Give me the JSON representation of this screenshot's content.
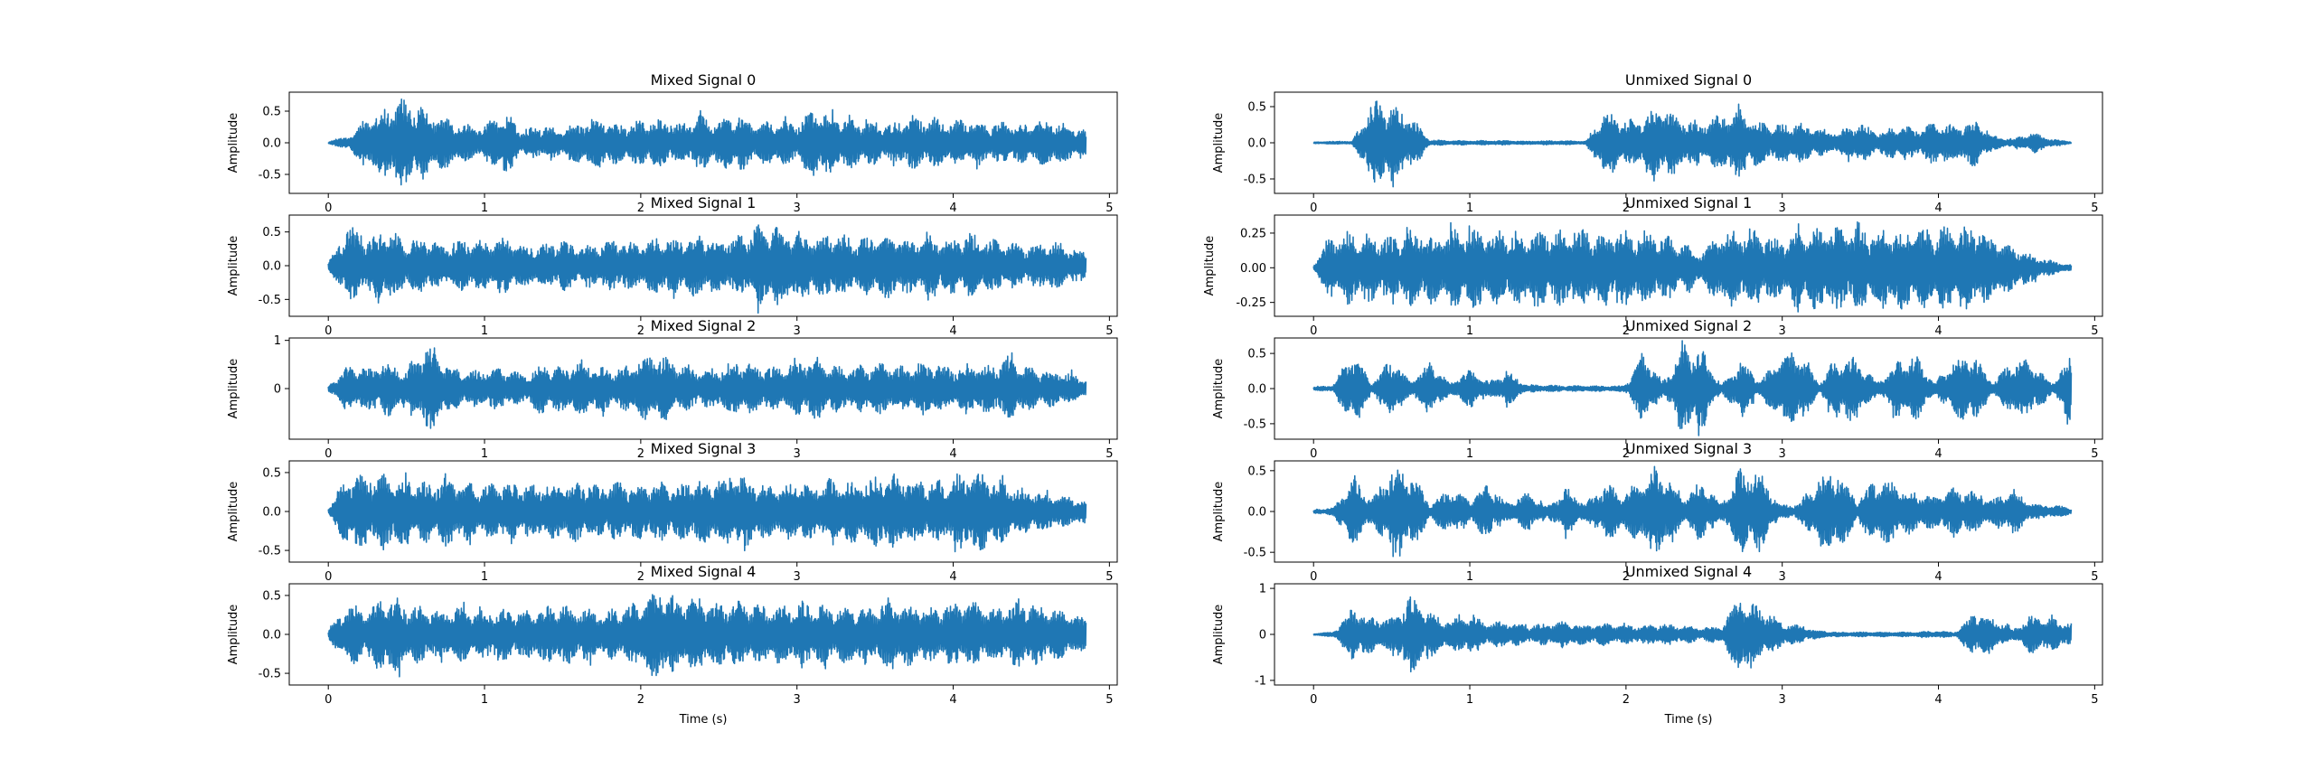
{
  "chart_data": [
    {
      "type": "line",
      "title": "Mixed Signal 0",
      "xlabel": "",
      "ylabel": "Amplitude",
      "xlim": [
        -0.25,
        5.05
      ],
      "ylim": [
        -0.8,
        0.8
      ],
      "xticks": [
        0,
        1,
        2,
        3,
        4,
        5
      ],
      "yticks": [
        -0.5,
        0.0,
        0.5
      ],
      "ytick_labels": [
        "-0.5",
        "0.0",
        "0.5"
      ],
      "duration": 4.85,
      "base": 0.08,
      "peak": 0.78,
      "envelope": [
        0.02,
        0.1,
        0.45,
        0.6,
        0.78,
        0.55,
        0.4,
        0.3,
        0.25,
        0.55,
        0.2,
        0.3,
        0.25,
        0.35,
        0.45,
        0.3,
        0.35,
        0.4,
        0.3,
        0.45,
        0.35,
        0.5,
        0.3,
        0.4,
        0.3,
        0.55,
        0.45,
        0.4,
        0.35,
        0.3,
        0.45,
        0.4,
        0.35,
        0.4,
        0.3,
        0.35,
        0.3,
        0.4,
        0.3,
        0.2
      ],
      "color": "#1f77b4"
    },
    {
      "type": "line",
      "title": "Mixed Signal 1",
      "xlabel": "",
      "ylabel": "Amplitude",
      "xlim": [
        -0.25,
        5.05
      ],
      "ylim": [
        -0.75,
        0.75
      ],
      "xticks": [
        0,
        1,
        2,
        3,
        4,
        5
      ],
      "yticks": [
        -0.5,
        0.0,
        0.5
      ],
      "ytick_labels": [
        "-0.5",
        "0.0",
        "0.5"
      ],
      "duration": 4.85,
      "base": 0.1,
      "peak": 0.7,
      "envelope": [
        0.05,
        0.65,
        0.4,
        0.6,
        0.35,
        0.45,
        0.3,
        0.4,
        0.35,
        0.45,
        0.3,
        0.35,
        0.4,
        0.3,
        0.35,
        0.4,
        0.35,
        0.45,
        0.4,
        0.5,
        0.4,
        0.45,
        0.6,
        0.65,
        0.55,
        0.45,
        0.5,
        0.4,
        0.45,
        0.5,
        0.4,
        0.45,
        0.4,
        0.5,
        0.4,
        0.35,
        0.3,
        0.4,
        0.3,
        0.2
      ],
      "color": "#1f77b4"
    },
    {
      "type": "line",
      "title": "Mixed Signal 2",
      "xlabel": "",
      "ylabel": "Amplitude",
      "xlim": [
        -0.25,
        5.05
      ],
      "ylim": [
        -1.05,
        1.05
      ],
      "xticks": [
        0,
        1,
        2,
        3,
        4,
        5
      ],
      "yticks": [
        0,
        1
      ],
      "ytick_labels": [
        "0",
        "1"
      ],
      "duration": 4.85,
      "base": 0.1,
      "peak": 1.0,
      "envelope": [
        0.05,
        0.5,
        0.45,
        0.6,
        0.4,
        1.0,
        0.55,
        0.35,
        0.4,
        0.45,
        0.3,
        0.55,
        0.45,
        0.6,
        0.5,
        0.4,
        0.65,
        0.75,
        0.55,
        0.4,
        0.45,
        0.6,
        0.5,
        0.45,
        0.55,
        0.7,
        0.5,
        0.45,
        0.55,
        0.5,
        0.45,
        0.6,
        0.45,
        0.55,
        0.5,
        0.7,
        0.45,
        0.4,
        0.35,
        0.2
      ],
      "color": "#1f77b4"
    },
    {
      "type": "line",
      "title": "Mixed Signal 3",
      "xlabel": "",
      "ylabel": "Amplitude",
      "xlim": [
        -0.25,
        5.05
      ],
      "ylim": [
        -0.65,
        0.65
      ],
      "xticks": [
        0,
        1,
        2,
        3,
        4,
        5
      ],
      "yticks": [
        -0.5,
        0.0,
        0.5
      ],
      "ytick_labels": [
        "-0.5",
        "0.0",
        "0.5"
      ],
      "duration": 4.85,
      "base": 0.08,
      "peak": 0.6,
      "envelope": [
        0.05,
        0.5,
        0.45,
        0.5,
        0.45,
        0.4,
        0.45,
        0.4,
        0.35,
        0.4,
        0.35,
        0.4,
        0.35,
        0.4,
        0.35,
        0.4,
        0.35,
        0.4,
        0.35,
        0.4,
        0.45,
        0.55,
        0.4,
        0.35,
        0.4,
        0.35,
        0.45,
        0.4,
        0.45,
        0.5,
        0.45,
        0.4,
        0.45,
        0.55,
        0.5,
        0.35,
        0.3,
        0.25,
        0.2,
        0.15
      ],
      "color": "#1f77b4"
    },
    {
      "type": "line",
      "title": "Mixed Signal 4",
      "xlabel": "Time (s)",
      "ylabel": "Amplitude",
      "xlim": [
        -0.25,
        5.05
      ],
      "ylim": [
        -0.65,
        0.65
      ],
      "xticks": [
        0,
        1,
        2,
        3,
        4,
        5
      ],
      "yticks": [
        -0.5,
        0.0,
        0.5
      ],
      "ytick_labels": [
        "-0.5",
        "0.0",
        "0.5"
      ],
      "duration": 4.85,
      "base": 0.08,
      "peak": 0.6,
      "envelope": [
        0.05,
        0.4,
        0.35,
        0.55,
        0.4,
        0.35,
        0.3,
        0.35,
        0.3,
        0.35,
        0.3,
        0.35,
        0.4,
        0.35,
        0.3,
        0.35,
        0.45,
        0.6,
        0.45,
        0.5,
        0.4,
        0.45,
        0.4,
        0.35,
        0.45,
        0.4,
        0.35,
        0.4,
        0.35,
        0.45,
        0.4,
        0.35,
        0.4,
        0.45,
        0.35,
        0.4,
        0.45,
        0.35,
        0.3,
        0.2
      ],
      "color": "#1f77b4"
    },
    {
      "type": "line",
      "title": "Unmixed Signal 0",
      "xlabel": "",
      "ylabel": "Amplitude",
      "xlim": [
        -0.25,
        5.05
      ],
      "ylim": [
        -0.7,
        0.7
      ],
      "xticks": [
        0,
        1,
        2,
        3,
        4,
        5
      ],
      "yticks": [
        -0.5,
        0.0,
        0.5
      ],
      "ytick_labels": [
        "-0.5",
        "0.0",
        "0.5"
      ],
      "duration": 4.85,
      "base": 0.02,
      "peak": 0.65,
      "envelope": [
        0.01,
        0.02,
        0.02,
        0.6,
        0.55,
        0.4,
        0.04,
        0.03,
        0.03,
        0.03,
        0.03,
        0.02,
        0.03,
        0.03,
        0.02,
        0.5,
        0.3,
        0.4,
        0.55,
        0.35,
        0.3,
        0.4,
        0.5,
        0.3,
        0.25,
        0.3,
        0.2,
        0.15,
        0.3,
        0.15,
        0.25,
        0.2,
        0.3,
        0.25,
        0.35,
        0.1,
        0.05,
        0.15,
        0.05,
        0.02
      ],
      "color": "#1f77b4"
    },
    {
      "type": "line",
      "title": "Unmixed Signal 1",
      "xlabel": "",
      "ylabel": "Amplitude",
      "xlim": [
        -0.25,
        5.05
      ],
      "ylim": [
        -0.35,
        0.38
      ],
      "xticks": [
        0,
        1,
        2,
        3,
        4,
        5
      ],
      "yticks": [
        -0.25,
        0.0,
        0.25
      ],
      "ytick_labels": [
        "-0.25",
        "0.00",
        "0.25"
      ],
      "duration": 4.85,
      "base": 0.01,
      "peak": 0.33,
      "envelope": [
        0.02,
        0.27,
        0.26,
        0.25,
        0.22,
        0.28,
        0.24,
        0.28,
        0.3,
        0.28,
        0.28,
        0.28,
        0.28,
        0.28,
        0.28,
        0.28,
        0.28,
        0.28,
        0.25,
        0.18,
        0.12,
        0.28,
        0.28,
        0.25,
        0.22,
        0.3,
        0.32,
        0.3,
        0.3,
        0.3,
        0.3,
        0.3,
        0.3,
        0.3,
        0.3,
        0.24,
        0.16,
        0.1,
        0.05,
        0.02
      ],
      "color": "#1f77b4"
    },
    {
      "type": "line",
      "title": "Unmixed Signal 2",
      "xlabel": "",
      "ylabel": "Amplitude",
      "xlim": [
        -0.25,
        5.05
      ],
      "ylim": [
        -0.72,
        0.72
      ],
      "xticks": [
        0,
        1,
        2,
        3,
        4,
        5
      ],
      "yticks": [
        -0.5,
        0.0,
        0.5
      ],
      "ytick_labels": [
        "-0.5",
        "0.0",
        "0.5"
      ],
      "duration": 4.85,
      "base": 0.04,
      "peak": 0.68,
      "envelope": [
        0.02,
        0.05,
        0.55,
        0.08,
        0.45,
        0.1,
        0.4,
        0.08,
        0.3,
        0.1,
        0.25,
        0.05,
        0.05,
        0.04,
        0.04,
        0.04,
        0.04,
        0.5,
        0.1,
        0.65,
        0.6,
        0.05,
        0.45,
        0.1,
        0.5,
        0.55,
        0.08,
        0.5,
        0.45,
        0.08,
        0.4,
        0.5,
        0.08,
        0.45,
        0.5,
        0.08,
        0.45,
        0.4,
        0.08,
        0.5
      ],
      "color": "#1f77b4"
    },
    {
      "type": "line",
      "title": "Unmixed Signal 3",
      "xlabel": "",
      "ylabel": "Amplitude",
      "xlim": [
        -0.25,
        5.05
      ],
      "ylim": [
        -0.62,
        0.62
      ],
      "xticks": [
        0,
        1,
        2,
        3,
        4,
        5
      ],
      "yticks": [
        -0.5,
        0.0,
        0.5
      ],
      "ytick_labels": [
        "-0.5",
        "0.0",
        "0.5"
      ],
      "duration": 4.85,
      "base": 0.05,
      "peak": 0.55,
      "envelope": [
        0.02,
        0.05,
        0.45,
        0.15,
        0.55,
        0.5,
        0.1,
        0.3,
        0.15,
        0.35,
        0.1,
        0.25,
        0.08,
        0.3,
        0.1,
        0.35,
        0.25,
        0.45,
        0.55,
        0.15,
        0.4,
        0.1,
        0.55,
        0.5,
        0.08,
        0.1,
        0.45,
        0.5,
        0.15,
        0.45,
        0.35,
        0.25,
        0.2,
        0.3,
        0.25,
        0.15,
        0.3,
        0.1,
        0.08,
        0.05
      ],
      "color": "#1f77b4"
    },
    {
      "type": "line",
      "title": "Unmixed Signal 4",
      "xlabel": "Time (s)",
      "ylabel": "Amplitude",
      "xlim": [
        -0.25,
        5.05
      ],
      "ylim": [
        -1.1,
        1.1
      ],
      "xticks": [
        0,
        1,
        2,
        3,
        4,
        5
      ],
      "yticks": [
        -1,
        0,
        1
      ],
      "ytick_labels": [
        "-1",
        "0",
        "1"
      ],
      "duration": 4.85,
      "base": 0.05,
      "peak": 1.0,
      "envelope": [
        0.02,
        0.05,
        0.6,
        0.4,
        0.35,
        0.9,
        0.5,
        0.3,
        0.45,
        0.25,
        0.3,
        0.2,
        0.25,
        0.3,
        0.2,
        0.25,
        0.2,
        0.2,
        0.25,
        0.2,
        0.15,
        0.2,
        0.95,
        0.6,
        0.3,
        0.2,
        0.08,
        0.05,
        0.05,
        0.05,
        0.05,
        0.05,
        0.08,
        0.05,
        0.5,
        0.4,
        0.1,
        0.45,
        0.35,
        0.25
      ],
      "color": "#1f77b4"
    }
  ]
}
